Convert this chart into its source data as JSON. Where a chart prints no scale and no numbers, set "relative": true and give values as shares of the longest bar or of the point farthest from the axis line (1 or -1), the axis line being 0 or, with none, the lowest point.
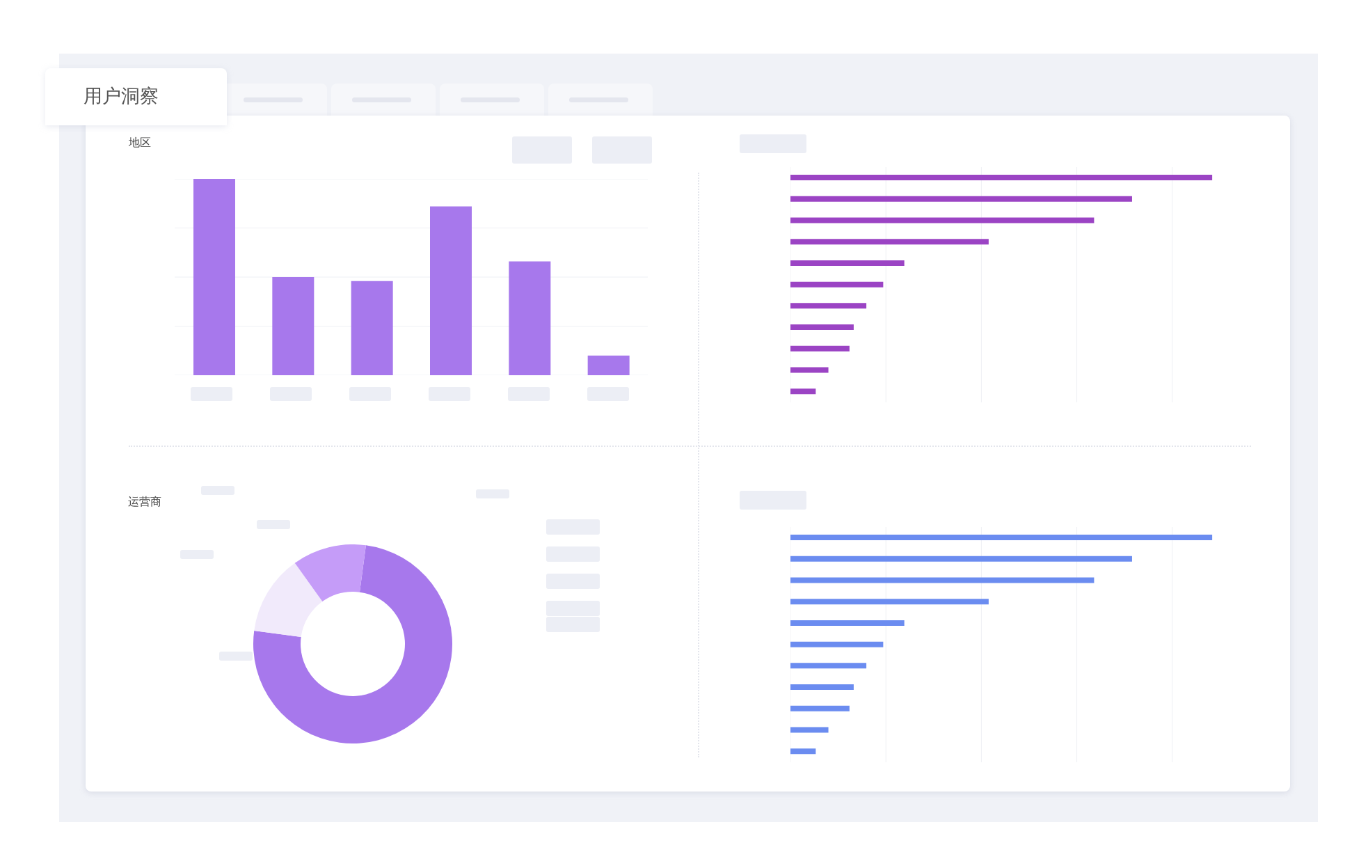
{
  "chart_data": [
    {
      "type": "other",
      "title": "用户洞察"
    },
    {
      "type": "bar",
      "title": "地区",
      "relative": true,
      "categories": [
        null,
        null,
        null,
        null,
        null,
        null
      ],
      "values": [
        1,
        0.5,
        0.48,
        0.86,
        0.58,
        0.1
      ],
      "color": "#a778ec",
      "grid": "y",
      "legend": false
    },
    {
      "type": "bar",
      "orientation": "horizontal",
      "relative": true,
      "categories": [
        null,
        null,
        null,
        null,
        null,
        null,
        null,
        null,
        null,
        null,
        null
      ],
      "values": [
        1,
        0.81,
        0.72,
        0.47,
        0.27,
        0.22,
        0.18,
        0.15,
        0.14,
        0.09,
        0.06
      ],
      "color": "#9b44c4",
      "grid": "x",
      "legend": false
    },
    {
      "type": "donut",
      "title": "运营商",
      "categories": [
        null,
        null,
        null
      ],
      "values": [
        75,
        13,
        12
      ],
      "colors": [
        "#a778ec",
        "#f1eafb",
        "#c59cf8"
      ],
      "legend": false
    },
    {
      "type": "bar",
      "orientation": "horizontal",
      "relative": true,
      "categories": [
        null,
        null,
        null,
        null,
        null,
        null,
        null,
        null,
        null,
        null,
        null
      ],
      "values": [
        1,
        0.81,
        0.72,
        0.47,
        0.27,
        0.22,
        0.18,
        0.15,
        0.14,
        0.09,
        0.06
      ],
      "color": "#6b8cf0",
      "grid": "x",
      "legend": false
    }
  ]
}
